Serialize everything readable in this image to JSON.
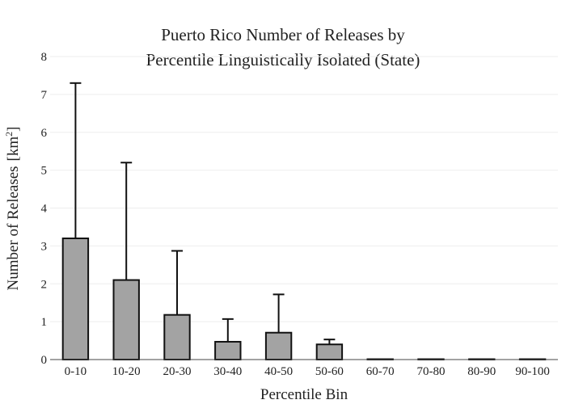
{
  "chart_data": {
    "type": "bar",
    "title_line1": "Puerto Rico Number of Releases by",
    "title_line2": "Percentile Linguistically Isolated (State)",
    "xlabel": "Percentile Bin",
    "ylabel": "Number of Releases",
    "ylabel_unit": "[km",
    "ylabel_unit_sup": "2",
    "ylabel_unit_close": "]",
    "categories": [
      "0-10",
      "10-20",
      "20-30",
      "30-40",
      "40-50",
      "50-60",
      "60-70",
      "70-80",
      "80-90",
      "90-100"
    ],
    "values": [
      3.2,
      2.1,
      1.18,
      0.47,
      0.71,
      0.4,
      0,
      0,
      0,
      0
    ],
    "error_upper": [
      7.3,
      5.2,
      2.87,
      1.07,
      1.72,
      0.53,
      null,
      null,
      null,
      null
    ],
    "ylim": [
      0,
      8
    ],
    "yticks": [
      "0",
      "1",
      "2",
      "3",
      "4",
      "5",
      "6",
      "7",
      "8"
    ],
    "grid": true,
    "colors": {
      "bar": "#a3a3a3",
      "outline": "#111111",
      "grid": "#eeeeee"
    }
  }
}
